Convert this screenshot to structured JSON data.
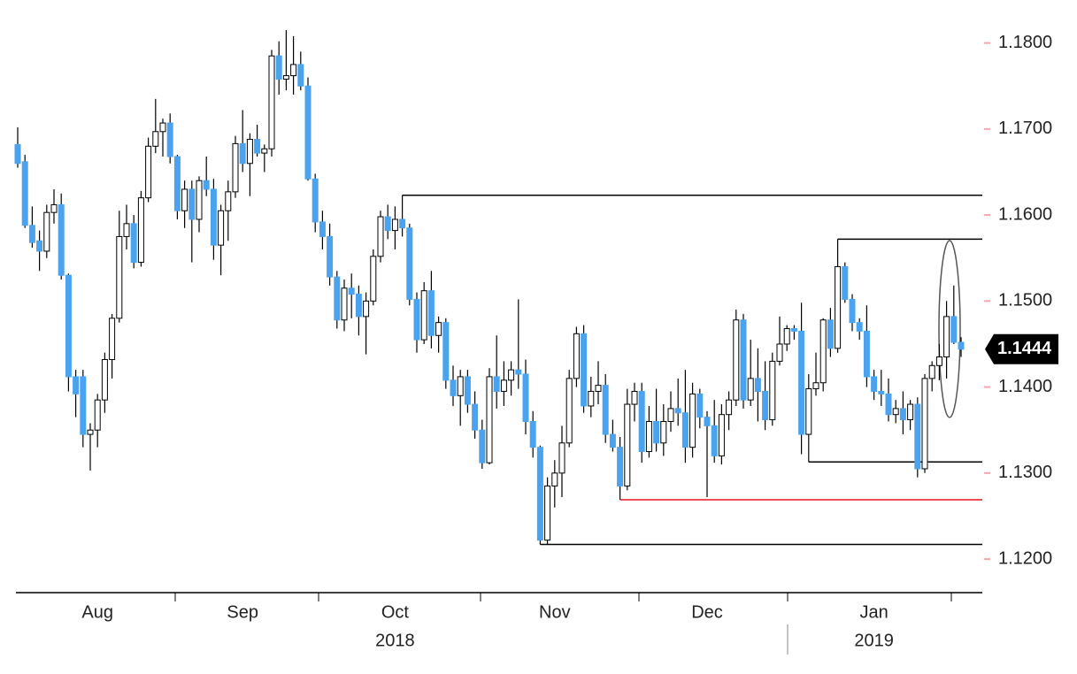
{
  "chart_data": {
    "type": "candlestick",
    "categories": [
      null,
      null,
      null,
      null,
      null,
      null,
      null,
      null,
      null,
      null,
      null,
      "Aug",
      null,
      null,
      null,
      null,
      null,
      null,
      null,
      null,
      null,
      null,
      null,
      null,
      null,
      null,
      null,
      null,
      null,
      null,
      null,
      "Sep",
      null,
      null,
      null,
      null,
      null,
      null,
      null,
      null,
      null,
      null,
      null,
      null,
      null,
      null,
      null,
      null,
      null,
      null,
      null,
      null,
      "Oct",
      null,
      null,
      null,
      null,
      null,
      null,
      null,
      null,
      null,
      null,
      null,
      null,
      null,
      null,
      null,
      null,
      null,
      null,
      null,
      null,
      null,
      "Nov",
      null,
      null,
      null,
      null,
      null,
      null,
      null,
      null,
      null,
      null,
      null,
      null,
      null,
      null,
      null,
      null,
      null,
      null,
      null,
      null,
      "Dec",
      null,
      null,
      null,
      null,
      null,
      null,
      null,
      null,
      null,
      null,
      null,
      null,
      null,
      null,
      null,
      null,
      null,
      null,
      null,
      null,
      null,
      null,
      "Jan",
      null,
      null,
      null,
      null,
      null,
      null,
      null,
      null,
      null,
      null,
      null,
      null
    ],
    "categories2": [
      null,
      null,
      null,
      null,
      null,
      null,
      null,
      null,
      null,
      null,
      null,
      null,
      null,
      null,
      null,
      null,
      null,
      null,
      null,
      null,
      null,
      null,
      null,
      null,
      null,
      null,
      null,
      null,
      null,
      null,
      null,
      null,
      null,
      null,
      null,
      null,
      null,
      null,
      null,
      null,
      null,
      null,
      null,
      null,
      null,
      null,
      null,
      null,
      null,
      null,
      null,
      null,
      "2018",
      null,
      null,
      null,
      null,
      null,
      null,
      null,
      null,
      null,
      null,
      null,
      null,
      null,
      null,
      null,
      null,
      null,
      null,
      null,
      null,
      null,
      null,
      null,
      null,
      null,
      null,
      null,
      null,
      null,
      null,
      null,
      null,
      null,
      null,
      null,
      null,
      null,
      null,
      null,
      null,
      null,
      null,
      null,
      null,
      null,
      null,
      null,
      null,
      null,
      null,
      null,
      null,
      null,
      null,
      null,
      null,
      null,
      null,
      null,
      null,
      null,
      null,
      null,
      null,
      null,
      "2019",
      null,
      null,
      null,
      null,
      null,
      null,
      null,
      null,
      null,
      null,
      null,
      null
    ],
    "open": [
      1.1682,
      1.1662,
      1.1588,
      1.157,
      1.1558,
      1.1603,
      1.1612,
      1.153,
      1.1412,
      1.1412,
      1.1345,
      1.135,
      1.1385,
      1.1432,
      1.148,
      1.1575,
      1.159,
      1.1545,
      1.162,
      1.168,
      1.1697,
      1.1707,
      1.1668,
      1.1605,
      1.163,
      1.1595,
      1.164,
      1.163,
      1.1565,
      1.1605,
      1.1627,
      1.1683,
      1.166,
      1.1688,
      1.1672,
      1.1677,
      1.1785,
      1.1758,
      1.1762,
      1.1775,
      1.175,
      1.1642,
      1.1592,
      1.1575,
      1.1528,
      1.1478,
      1.1515,
      1.1508,
      1.1482,
      1.15,
      1.1552,
      1.1598,
      1.1582,
      1.1595,
      1.1585,
      1.1502,
      1.1455,
      1.1512,
      1.146,
      1.1475,
      1.1408,
      1.139,
      1.1412,
      1.138,
      1.135,
      1.1312,
      1.1412,
      1.1395,
      1.1408,
      1.142,
      1.1415,
      1.136,
      1.133,
      1.1222,
      1.1285,
      1.13,
      1.1335,
      1.141,
      1.1462,
      1.1378,
      1.1395,
      1.1402,
      1.1345,
      1.133,
      1.1285,
      1.138,
      1.1395,
      1.1325,
      1.136,
      1.1335,
      1.136,
      1.1375,
      1.137,
      1.133,
      1.1392,
      1.1365,
      1.1355,
      1.132,
      1.1368,
      1.1385,
      1.1478,
      1.1385,
      1.141,
      1.1395,
      1.1362,
      1.143,
      1.145,
      1.1468,
      1.1465,
      1.1345,
      1.1398,
      1.1405,
      1.1478,
      1.1445,
      1.154,
      1.1502,
      1.1475,
      1.1465,
      1.1412,
      1.1395,
      1.1392,
      1.1368,
      1.1375,
      1.1362,
      1.138,
      1.1305,
      1.141,
      1.1425,
      1.1435,
      1.1482,
      1.1452
    ],
    "high": [
      1.1702,
      1.167,
      1.161,
      1.1582,
      1.1612,
      1.163,
      1.1625,
      1.1532,
      1.142,
      1.142,
      1.1358,
      1.1392,
      1.144,
      1.1485,
      1.1605,
      1.1612,
      1.16,
      1.1628,
      1.169,
      1.1735,
      1.1712,
      1.1718,
      1.167,
      1.164,
      1.164,
      1.1645,
      1.1668,
      1.1642,
      1.1612,
      1.164,
      1.1692,
      1.1722,
      1.1695,
      1.1705,
      1.1682,
      1.1792,
      1.1802,
      1.1815,
      1.1808,
      1.179,
      1.176,
      1.1648,
      1.1605,
      1.159,
      1.1535,
      1.1525,
      1.1532,
      1.1518,
      1.151,
      1.156,
      1.1605,
      1.1612,
      1.161,
      1.1623,
      1.159,
      1.151,
      1.1522,
      1.1535,
      1.1482,
      1.148,
      1.1425,
      1.142,
      1.142,
      1.1395,
      1.1362,
      1.1422,
      1.146,
      1.143,
      1.143,
      1.1502,
      1.1432,
      1.1372,
      1.1332,
      1.1295,
      1.1315,
      1.1355,
      1.142,
      1.147,
      1.1472,
      1.1412,
      1.143,
      1.1415,
      1.1362,
      1.1342,
      1.1398,
      1.1405,
      1.1405,
      1.1378,
      1.1398,
      1.138,
      1.1395,
      1.141,
      1.142,
      1.1405,
      1.1398,
      1.1372,
      1.1385,
      1.138,
      1.1395,
      1.149,
      1.1485,
      1.1455,
      1.1445,
      1.143,
      1.144,
      1.1482,
      1.1472,
      1.1472,
      1.1498,
      1.1415,
      1.144,
      1.148,
      1.1492,
      1.1572,
      1.1545,
      1.1508,
      1.148,
      1.1495,
      1.142,
      1.142,
      1.141,
      1.1385,
      1.1395,
      1.1385,
      1.1388,
      1.1415,
      1.143,
      1.145,
      1.15,
      1.1518,
      1.1458
    ],
    "low": [
      1.1655,
      1.1585,
      1.1562,
      1.1535,
      1.155,
      1.159,
      1.1525,
      1.1395,
      1.1365,
      1.133,
      1.1303,
      1.133,
      1.137,
      1.141,
      1.1475,
      1.156,
      1.1538,
      1.154,
      1.1615,
      1.1672,
      1.1668,
      1.166,
      1.1595,
      1.1585,
      1.1545,
      1.158,
      1.1622,
      1.1548,
      1.153,
      1.157,
      1.162,
      1.165,
      1.1622,
      1.1668,
      1.165,
      1.1668,
      1.174,
      1.1745,
      1.174,
      1.1745,
      1.164,
      1.158,
      1.156,
      1.1518,
      1.1468,
      1.1465,
      1.148,
      1.146,
      1.1438,
      1.1495,
      1.1545,
      1.1572,
      1.156,
      1.1575,
      1.1495,
      1.144,
      1.145,
      1.1445,
      1.144,
      1.1398,
      1.1378,
      1.1355,
      1.137,
      1.134,
      1.1305,
      1.131,
      1.1375,
      1.1378,
      1.139,
      1.1398,
      1.1345,
      1.1318,
      1.1217,
      1.1217,
      1.126,
      1.1272,
      1.133,
      1.14,
      1.137,
      1.1365,
      1.138,
      1.1335,
      1.1325,
      1.1269,
      1.128,
      1.136,
      1.1312,
      1.1318,
      1.1325,
      1.132,
      1.1348,
      1.1355,
      1.1312,
      1.1318,
      1.1352,
      1.1272,
      1.1312,
      1.131,
      1.135,
      1.1378,
      1.1375,
      1.1378,
      1.136,
      1.135,
      1.1355,
      1.1425,
      1.1442,
      1.1455,
      1.1322,
      1.1313,
      1.139,
      1.1395,
      1.1435,
      1.144,
      1.1498,
      1.1465,
      1.1455,
      1.14,
      1.1385,
      1.1378,
      1.136,
      1.1358,
      1.1345,
      1.135,
      1.1295,
      1.13,
      1.1395,
      1.1408,
      1.141,
      1.145,
      1.1435
    ],
    "close": [
      1.166,
      1.1588,
      1.1568,
      1.1558,
      1.1603,
      1.1612,
      1.153,
      1.1412,
      1.1392,
      1.1345,
      1.135,
      1.1385,
      1.1432,
      1.148,
      1.1575,
      1.159,
      1.1545,
      1.162,
      1.168,
      1.1697,
      1.1707,
      1.1668,
      1.1605,
      1.163,
      1.1595,
      1.164,
      1.163,
      1.1565,
      1.1605,
      1.1627,
      1.1683,
      1.166,
      1.1688,
      1.1672,
      1.1677,
      1.1785,
      1.1758,
      1.1762,
      1.1775,
      1.175,
      1.1642,
      1.1592,
      1.1575,
      1.1528,
      1.1478,
      1.1515,
      1.1508,
      1.1482,
      1.15,
      1.1552,
      1.1598,
      1.1582,
      1.1595,
      1.1585,
      1.1502,
      1.1455,
      1.1512,
      1.146,
      1.1475,
      1.1408,
      1.139,
      1.1412,
      1.138,
      1.135,
      1.1312,
      1.1412,
      1.1395,
      1.1408,
      1.142,
      1.1415,
      1.136,
      1.133,
      1.1222,
      1.1285,
      1.13,
      1.1335,
      1.141,
      1.1462,
      1.1378,
      1.1395,
      1.1402,
      1.1345,
      1.133,
      1.1285,
      1.138,
      1.1395,
      1.1325,
      1.136,
      1.1335,
      1.136,
      1.1375,
      1.137,
      1.133,
      1.1392,
      1.1365,
      1.1355,
      1.132,
      1.1368,
      1.1385,
      1.1478,
      1.1385,
      1.141,
      1.1395,
      1.1362,
      1.143,
      1.145,
      1.1468,
      1.1465,
      1.1345,
      1.1398,
      1.1405,
      1.1478,
      1.1445,
      1.154,
      1.1502,
      1.1475,
      1.1465,
      1.1412,
      1.1395,
      1.1392,
      1.1368,
      1.1375,
      1.1362,
      1.138,
      1.1305,
      1.141,
      1.1425,
      1.1435,
      1.1482,
      1.1452,
      1.1444
    ],
    "up_color": "#ffffff",
    "down_color": "#4aa3f0",
    "ylim": [
      1.1161,
      1.185
    ],
    "yticks": [
      {
        "value": 1.12,
        "label": "1.1200"
      },
      {
        "value": 1.13,
        "label": "1.1300"
      },
      {
        "value": 1.14,
        "label": "1.1400"
      },
      {
        "value": 1.15,
        "label": "1.1500"
      },
      {
        "value": 1.16,
        "label": "1.1600"
      },
      {
        "value": 1.17,
        "label": "1.1700"
      },
      {
        "value": 1.18,
        "label": "1.1800"
      }
    ],
    "levels": [
      {
        "value": 1.1623,
        "from": 53,
        "color": "#000000"
      },
      {
        "value": 1.1572,
        "from": 113,
        "color": "#000000"
      },
      {
        "value": 1.1313,
        "from": 109,
        "color": "#000000"
      },
      {
        "value": 1.1269,
        "from": 83,
        "color": "#e8141b"
      },
      {
        "value": 1.1217,
        "from": 72,
        "color": "#000000"
      }
    ],
    "last_price": 1.1444
  }
}
